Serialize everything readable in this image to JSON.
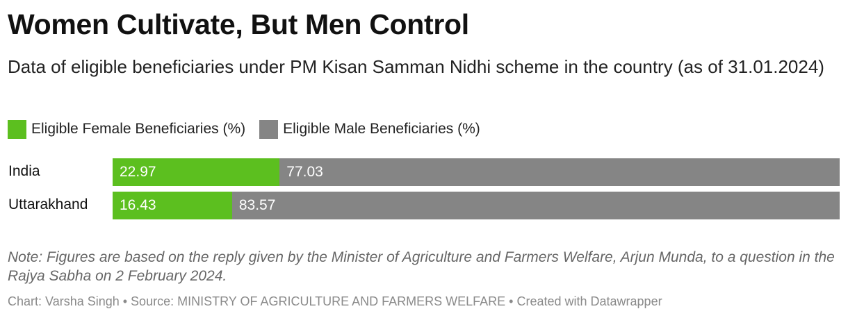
{
  "title": "Women Cultivate, But Men Control",
  "subtitle": "Data of eligible beneficiaries under PM Kisan Samman Nidhi scheme in the country (as of 31.01.2024)",
  "note": "Note: Figures are based on the reply given by the Minister of Agriculture and Farmers Welfare, Arjun Munda, to a question in the Rajya Sabha on 2 February 2024.",
  "credit": "Chart: Varsha Singh • Source: MINISTRY OF AGRICULTURE AND FARMERS WELFARE • Created with Datawrapper",
  "chart_data": {
    "type": "bar",
    "orientation": "horizontal",
    "stacked": true,
    "categories": [
      "India",
      "Uttarakhand"
    ],
    "series": [
      {
        "name": "Eligible Female Beneficiaries (%)",
        "values": [
          22.97,
          16.43
        ],
        "color": "#5cbf1f"
      },
      {
        "name": "Eligible Male Beneficiaries (%)",
        "values": [
          77.03,
          83.57
        ],
        "color": "#858585"
      }
    ],
    "xlim": [
      0,
      100
    ],
    "grid": false,
    "legend_position": "top-left"
  }
}
